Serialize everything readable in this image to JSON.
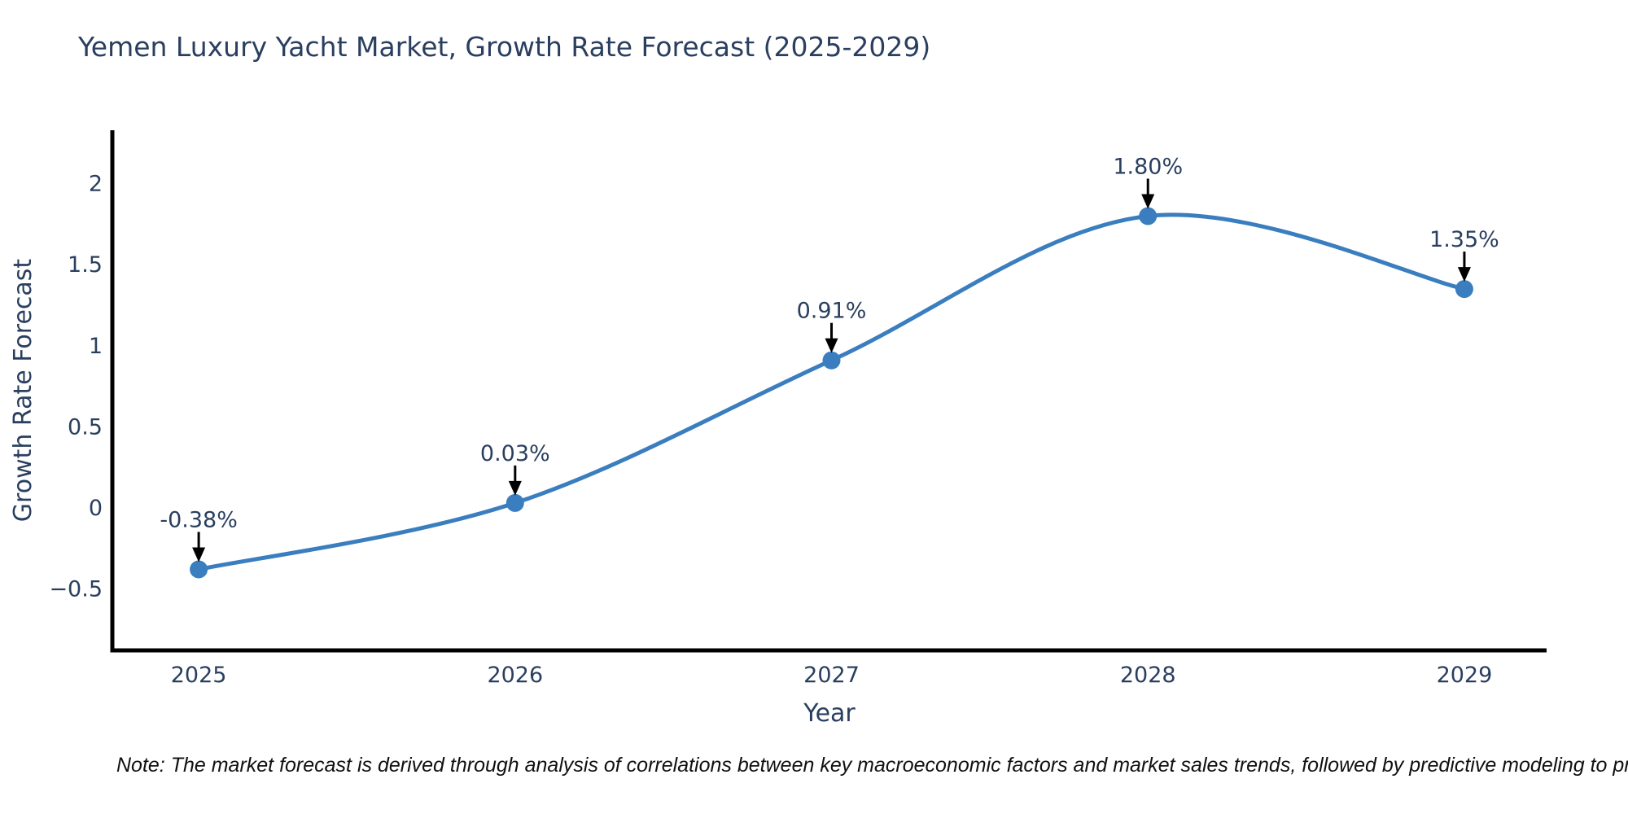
{
  "title": "Yemen Luxury Yacht Market, Growth Rate Forecast (2025-2029)",
  "note": "Note: The market forecast is derived through analysis of correlations between key macroeconomic factors and market sales trends, followed by predictive modeling to project future sales.",
  "chart_data": {
    "type": "line",
    "title": "Yemen Luxury Yacht Market, Growth Rate Forecast (2025-2029)",
    "xlabel": "Year",
    "ylabel": "Growth Rate Forecast",
    "x": [
      2025,
      2026,
      2027,
      2028,
      2029
    ],
    "series": [
      {
        "name": "Growth Rate Forecast",
        "values": [
          -0.38,
          0.03,
          0.91,
          1.8,
          1.35
        ]
      }
    ],
    "point_labels": [
      "-0.38%",
      "0.03%",
      "0.91%",
      "1.80%",
      "1.35%"
    ],
    "x_tick_labels": [
      "2025",
      "2026",
      "2027",
      "2028",
      "2029"
    ],
    "y_tick_values": [
      2,
      1.5,
      1,
      0.5,
      0,
      -0.5
    ],
    "y_tick_labels": [
      "2",
      "1.5",
      "1",
      "0.5",
      "0",
      "−0.5"
    ],
    "xlim": [
      2024.727,
      2029.26
    ],
    "ylim": [
      -0.88,
      2.33
    ],
    "line_shape": "spline",
    "grid": false,
    "legend": "none",
    "marker_size": 11,
    "colors": {
      "line": "#3a7ebf",
      "marker": "#3a7ebf",
      "axis": "#000000",
      "tick_text": "#2a3f5f",
      "title_text": "#2a3f5f",
      "annotation_text": "#2a3f5f",
      "annotation_arrow": "#000000",
      "background": "#ffffff"
    }
  }
}
